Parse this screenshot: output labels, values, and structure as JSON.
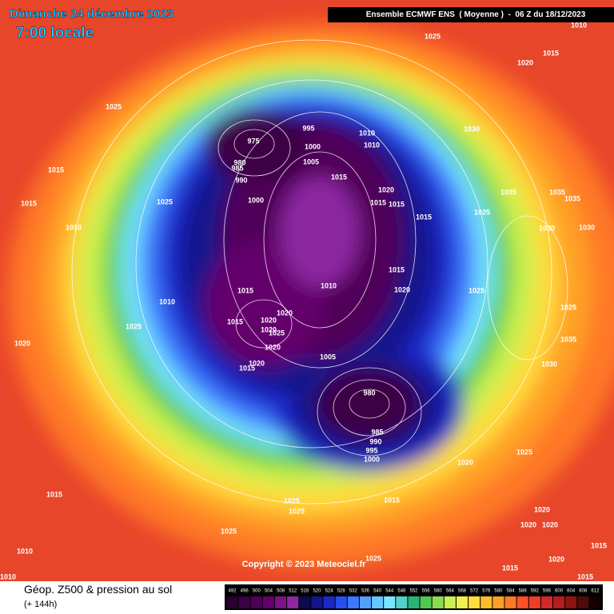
{
  "header": {
    "date": "Dimanche 24 décembre 2023",
    "time": "7:00 locale",
    "model": "Ensemble ECMWF ENS  ( Moyenne )  -  06 Z du 18/12/2023"
  },
  "map": {
    "pressure_labels": [
      1025,
      1010,
      1015,
      1020,
      1025,
      975,
      995,
      1010,
      1010,
      1000,
      980,
      1005,
      985,
      990,
      1015,
      1030,
      1015,
      1025,
      1015,
      1000,
      1020,
      1015,
      1015,
      1015,
      1025,
      1035,
      1035,
      1035,
      1010,
      1030,
      1030,
      1010,
      1015,
      1015,
      1020,
      1025,
      1020,
      1010,
      1015,
      1020,
      1020,
      1025,
      1025,
      1020,
      1020,
      1005,
      1015,
      1020,
      980,
      1025,
      1035,
      1030,
      985,
      990,
      995,
      1000,
      1020,
      1025,
      1015,
      1015,
      1025,
      1025,
      1020,
      1020,
      1020,
      1025,
      1010,
      1025,
      1015,
      1020,
      1015,
      1010,
      1015
    ]
  },
  "footer": {
    "copyright": "Copyright © 2023 Meteociel.fr",
    "legend_title": "Géop. Z500 & pression au sol",
    "lead_time": "(+ 144h)"
  },
  "colorbar": {
    "ticks": [
      492,
      496,
      500,
      504,
      508,
      512,
      516,
      520,
      524,
      528,
      532,
      536,
      540,
      544,
      548,
      552,
      556,
      560,
      564,
      568,
      572,
      576,
      580,
      584,
      588,
      592,
      596,
      600,
      604,
      608,
      612
    ],
    "colors": [
      "#2b0030",
      "#3c0044",
      "#500058",
      "#64006c",
      "#7a1488",
      "#8c28a0",
      "#0a0a50",
      "#14148c",
      "#1e28c8",
      "#2850f0",
      "#3c78ff",
      "#50a0ff",
      "#64c8ff",
      "#78e6ff",
      "#50d2c8",
      "#28b478",
      "#50c850",
      "#8cdc50",
      "#c8f050",
      "#f0f050",
      "#ffdc3c",
      "#ffbe28",
      "#ffa028",
      "#ff7828",
      "#ff5028",
      "#f03c28",
      "#d22828",
      "#b41e1e",
      "#8c1414",
      "#500a0a",
      "#140000"
    ]
  }
}
